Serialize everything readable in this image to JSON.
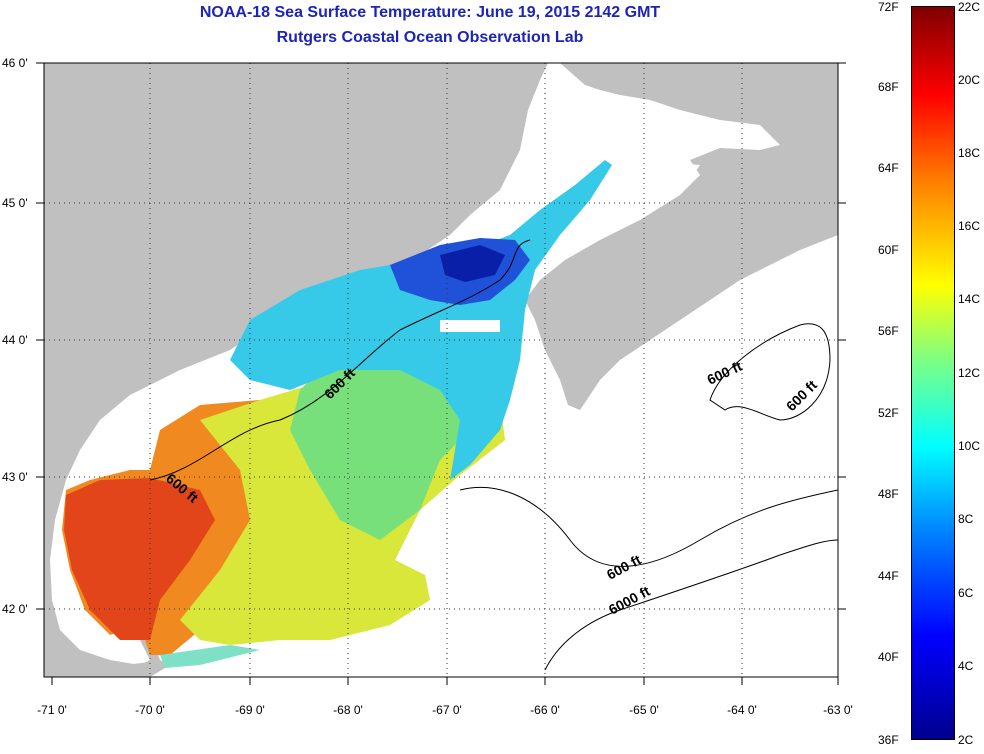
{
  "header": {
    "title": "NOAA-18 Sea Surface Temperature:  June 19, 2015 2142 GMT",
    "subtitle": "Rutgers Coastal Ocean Observation Lab"
  },
  "map": {
    "lat_labels": [
      "46 0'",
      "45 0'",
      "44 0'",
      "43 0'",
      "42 0'"
    ],
    "lon_labels": [
      "-71 0'",
      "-70 0'",
      "-69 0'",
      "-68 0'",
      "-67 0'",
      "-66 0'",
      "-65 0'",
      "-64 0'",
      "-63 0'"
    ],
    "contour_labels": [
      "600 ft",
      "600 ft",
      "600 ft",
      "600 ft",
      "6000 ft"
    ],
    "land_color": "#c0c0c0",
    "no_data_color": "#ffffff"
  },
  "colorbar": {
    "fahrenheit": [
      "72F",
      "68F",
      "64F",
      "60F",
      "56F",
      "52F",
      "48F",
      "44F",
      "40F",
      "36F"
    ],
    "celsius": [
      "22C",
      "20C",
      "18C",
      "16C",
      "14C",
      "12C",
      "10C",
      "8C",
      "6C",
      "4C",
      "2C"
    ]
  }
}
